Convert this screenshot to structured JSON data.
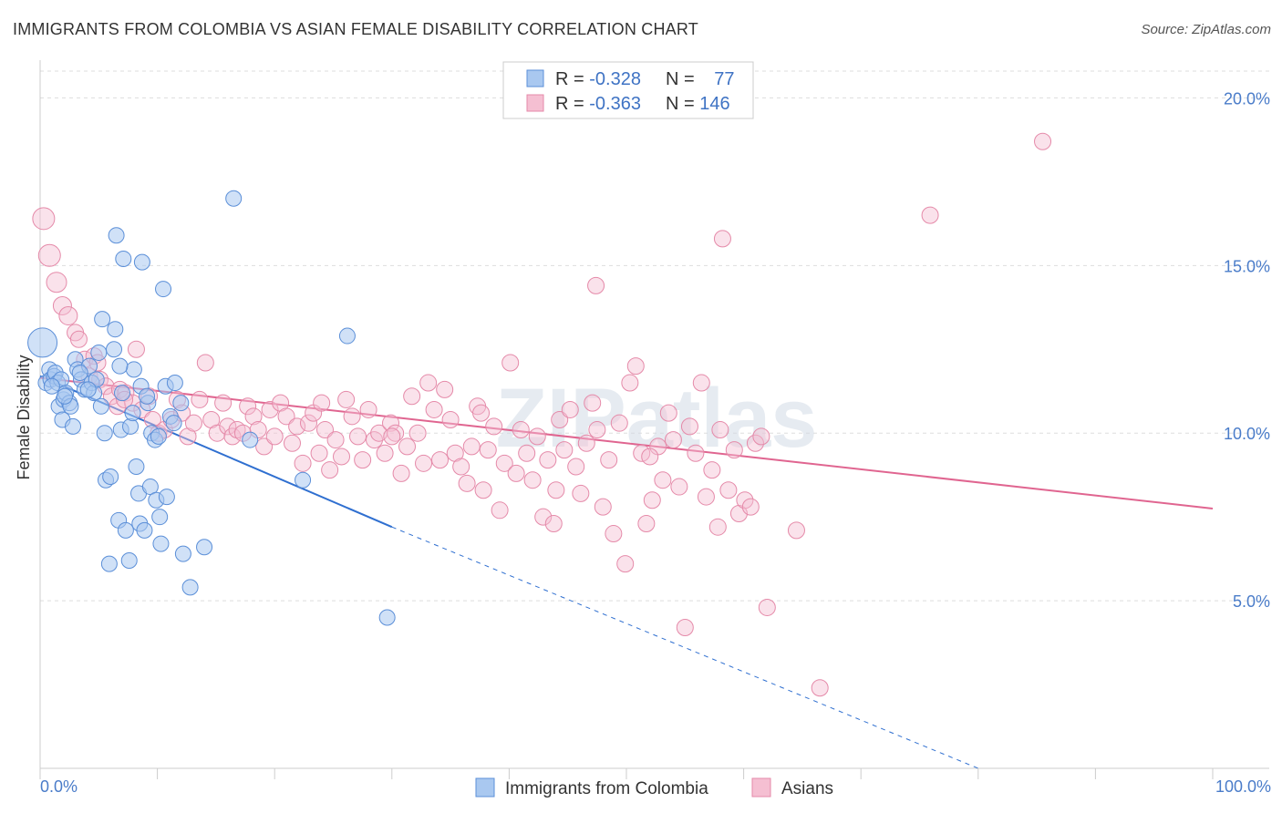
{
  "title": "IMMIGRANTS FROM COLOMBIA VS ASIAN FEMALE DISABILITY CORRELATION CHART",
  "source": "Source: ZipAtlas.com",
  "watermark": "ZIPatlas",
  "colors": {
    "blue_fill": "#a9c8f0",
    "blue_stroke": "#5b8fd8",
    "blue_line": "#2f6fd0",
    "pink_fill": "#f5bfd2",
    "pink_stroke": "#e58aa9",
    "pink_line": "#e06590",
    "tick_text": "#4a7cc9",
    "grid": "#dddddd"
  },
  "legend": {
    "rows": [
      {
        "r_label": "R = ",
        "r_value": "-0.328",
        "n_label": "N = ",
        "n_value": "77"
      },
      {
        "r_label": "R = ",
        "r_value": "-0.363",
        "n_label": "N = ",
        "n_value": "146"
      }
    ]
  },
  "chart_data": {
    "type": "scatter",
    "title": "IMMIGRANTS FROM COLOMBIA VS ASIAN FEMALE DISABILITY CORRELATION CHART",
    "xlabel": "",
    "ylabel": "Female Disability",
    "xlim": [
      0,
      100
    ],
    "ylim": [
      0,
      20.8
    ],
    "x_tick_labels": [
      "0.0%",
      "100.0%"
    ],
    "y_ticks": [
      5,
      10,
      15,
      20
    ],
    "y_tick_labels": [
      "5.0%",
      "10.0%",
      "15.0%",
      "20.0%"
    ],
    "grid": true,
    "legend_position": "top-center",
    "series": [
      {
        "name": "Immigrants from Colombia",
        "color": "#5b8fd8",
        "stats": {
          "R": -0.328,
          "N": 77
        },
        "trend": {
          "x0": 0,
          "y0": 11.7,
          "x1": 30,
          "y1": 7.2,
          "dashed_to_x": 80,
          "dashed_to_y": 0
        },
        "points": [
          [
            0.2,
            12.7
          ],
          [
            0.5,
            11.5
          ],
          [
            0.8,
            11.9
          ],
          [
            0.9,
            11.6
          ],
          [
            1.2,
            11.7
          ],
          [
            1.3,
            11.8
          ],
          [
            1.5,
            11.5
          ],
          [
            1.6,
            10.8
          ],
          [
            1.8,
            11.6
          ],
          [
            1.9,
            10.4
          ],
          [
            2.0,
            11.0
          ],
          [
            2.2,
            11.2
          ],
          [
            2.5,
            10.9
          ],
          [
            2.6,
            10.8
          ],
          [
            2.8,
            10.2
          ],
          [
            3.0,
            12.2
          ],
          [
            3.2,
            11.9
          ],
          [
            3.5,
            11.6
          ],
          [
            3.8,
            11.3
          ],
          [
            4.2,
            12.0
          ],
          [
            4.4,
            11.5
          ],
          [
            4.6,
            11.2
          ],
          [
            4.8,
            11.6
          ],
          [
            5.0,
            12.4
          ],
          [
            5.3,
            13.4
          ],
          [
            5.5,
            10.0
          ],
          [
            5.6,
            8.6
          ],
          [
            5.9,
            6.1
          ],
          [
            6.0,
            8.7
          ],
          [
            6.3,
            12.5
          ],
          [
            6.4,
            13.1
          ],
          [
            6.5,
            15.9
          ],
          [
            6.7,
            7.4
          ],
          [
            6.9,
            10.1
          ],
          [
            7.0,
            11.2
          ],
          [
            7.1,
            15.2
          ],
          [
            7.3,
            7.1
          ],
          [
            7.6,
            6.2
          ],
          [
            7.7,
            10.2
          ],
          [
            8.0,
            11.9
          ],
          [
            8.2,
            9.0
          ],
          [
            8.4,
            8.2
          ],
          [
            8.5,
            7.3
          ],
          [
            8.6,
            11.4
          ],
          [
            8.7,
            15.1
          ],
          [
            8.9,
            7.1
          ],
          [
            9.2,
            10.9
          ],
          [
            9.4,
            8.4
          ],
          [
            9.5,
            10.0
          ],
          [
            9.8,
            9.8
          ],
          [
            9.9,
            8.0
          ],
          [
            10.2,
            7.5
          ],
          [
            10.3,
            6.7
          ],
          [
            10.5,
            14.3
          ],
          [
            10.7,
            11.4
          ],
          [
            10.8,
            8.1
          ],
          [
            11.1,
            10.5
          ],
          [
            11.4,
            10.3
          ],
          [
            11.5,
            11.5
          ],
          [
            12.2,
            6.4
          ],
          [
            12.8,
            5.4
          ],
          [
            14.0,
            6.6
          ],
          [
            16.5,
            17.0
          ],
          [
            17.9,
            9.8
          ],
          [
            22.4,
            8.6
          ],
          [
            26.2,
            12.9
          ],
          [
            29.6,
            4.5
          ],
          [
            1.0,
            11.4
          ],
          [
            2.1,
            11.1
          ],
          [
            3.4,
            11.8
          ],
          [
            4.1,
            11.3
          ],
          [
            5.2,
            10.8
          ],
          [
            6.8,
            12.0
          ],
          [
            7.9,
            10.6
          ],
          [
            9.1,
            11.1
          ],
          [
            10.1,
            9.9
          ],
          [
            12.0,
            10.9
          ]
        ]
      },
      {
        "name": "Asians",
        "color": "#e58aa9",
        "stats": {
          "R": -0.363,
          "N": 146
        },
        "trend": {
          "x0": 0,
          "y0": 11.65,
          "x1": 100,
          "y1": 7.75
        },
        "points": [
          [
            0.3,
            16.4
          ],
          [
            0.8,
            15.3
          ],
          [
            1.4,
            14.5
          ],
          [
            1.9,
            13.8
          ],
          [
            2.4,
            13.5
          ],
          [
            3.0,
            13.0
          ],
          [
            3.3,
            12.8
          ],
          [
            3.8,
            12.2
          ],
          [
            4.2,
            11.7
          ],
          [
            4.6,
            12.3
          ],
          [
            4.9,
            12.1
          ],
          [
            5.1,
            11.6
          ],
          [
            5.6,
            11.4
          ],
          [
            6.1,
            11.1
          ],
          [
            6.6,
            10.8
          ],
          [
            6.8,
            11.3
          ],
          [
            7.3,
            11.2
          ],
          [
            7.9,
            10.9
          ],
          [
            8.2,
            12.5
          ],
          [
            8.7,
            10.7
          ],
          [
            9.3,
            11.1
          ],
          [
            9.6,
            10.4
          ],
          [
            10.1,
            10.0
          ],
          [
            10.6,
            10.1
          ],
          [
            11.2,
            10.4
          ],
          [
            11.7,
            11.0
          ],
          [
            12.1,
            10.6
          ],
          [
            12.6,
            9.9
          ],
          [
            13.1,
            10.3
          ],
          [
            13.6,
            11.0
          ],
          [
            14.1,
            12.1
          ],
          [
            14.6,
            10.4
          ],
          [
            15.1,
            10.0
          ],
          [
            15.6,
            10.9
          ],
          [
            16.0,
            10.2
          ],
          [
            16.4,
            9.9
          ],
          [
            16.8,
            10.1
          ],
          [
            17.3,
            10.0
          ],
          [
            17.7,
            10.8
          ],
          [
            18.2,
            10.5
          ],
          [
            18.6,
            10.1
          ],
          [
            19.1,
            9.6
          ],
          [
            19.6,
            10.7
          ],
          [
            20.0,
            9.9
          ],
          [
            20.5,
            10.9
          ],
          [
            21.0,
            10.5
          ],
          [
            21.5,
            9.7
          ],
          [
            21.9,
            10.2
          ],
          [
            22.4,
            9.1
          ],
          [
            22.9,
            10.3
          ],
          [
            23.3,
            10.6
          ],
          [
            23.8,
            9.4
          ],
          [
            24.3,
            10.1
          ],
          [
            24.7,
            8.9
          ],
          [
            25.2,
            9.8
          ],
          [
            25.7,
            9.3
          ],
          [
            26.1,
            11.0
          ],
          [
            26.6,
            10.5
          ],
          [
            27.1,
            9.9
          ],
          [
            27.5,
            9.2
          ],
          [
            28.0,
            10.7
          ],
          [
            28.5,
            9.8
          ],
          [
            28.9,
            10.0
          ],
          [
            29.4,
            9.4
          ],
          [
            29.9,
            10.3
          ],
          [
            30.3,
            10.0
          ],
          [
            30.8,
            8.8
          ],
          [
            31.3,
            9.6
          ],
          [
            31.7,
            11.1
          ],
          [
            32.2,
            10.0
          ],
          [
            32.7,
            9.1
          ],
          [
            33.1,
            11.5
          ],
          [
            33.6,
            10.7
          ],
          [
            34.1,
            9.2
          ],
          [
            34.5,
            11.3
          ],
          [
            35.0,
            10.4
          ],
          [
            35.4,
            9.4
          ],
          [
            35.9,
            9.0
          ],
          [
            36.4,
            8.5
          ],
          [
            36.8,
            9.6
          ],
          [
            37.3,
            10.8
          ],
          [
            37.8,
            8.3
          ],
          [
            38.2,
            9.5
          ],
          [
            38.7,
            10.2
          ],
          [
            39.2,
            7.7
          ],
          [
            39.6,
            9.1
          ],
          [
            40.1,
            12.1
          ],
          [
            40.6,
            8.8
          ],
          [
            41.0,
            10.1
          ],
          [
            41.5,
            9.4
          ],
          [
            42.0,
            8.6
          ],
          [
            42.4,
            9.9
          ],
          [
            42.9,
            7.5
          ],
          [
            43.3,
            9.2
          ],
          [
            43.8,
            7.3
          ],
          [
            44.3,
            10.4
          ],
          [
            44.7,
            9.5
          ],
          [
            45.2,
            10.7
          ],
          [
            45.7,
            9.0
          ],
          [
            46.1,
            8.2
          ],
          [
            46.6,
            9.7
          ],
          [
            47.1,
            10.9
          ],
          [
            47.5,
            10.1
          ],
          [
            48.0,
            7.8
          ],
          [
            48.5,
            9.2
          ],
          [
            48.9,
            7.0
          ],
          [
            49.4,
            10.3
          ],
          [
            49.9,
            6.1
          ],
          [
            50.3,
            11.5
          ],
          [
            50.8,
            12.0
          ],
          [
            51.3,
            9.4
          ],
          [
            51.7,
            7.3
          ],
          [
            52.2,
            8.0
          ],
          [
            52.7,
            9.6
          ],
          [
            53.1,
            8.6
          ],
          [
            53.6,
            10.6
          ],
          [
            54.0,
            9.8
          ],
          [
            54.5,
            8.4
          ],
          [
            55.0,
            4.2
          ],
          [
            55.4,
            10.2
          ],
          [
            55.9,
            9.4
          ],
          [
            56.4,
            11.5
          ],
          [
            56.8,
            8.1
          ],
          [
            57.3,
            8.9
          ],
          [
            57.8,
            7.2
          ],
          [
            58.2,
            15.8
          ],
          [
            58.7,
            8.3
          ],
          [
            59.2,
            9.5
          ],
          [
            59.6,
            7.6
          ],
          [
            60.1,
            8.0
          ],
          [
            60.6,
            7.8
          ],
          [
            61.0,
            9.7
          ],
          [
            61.5,
            9.9
          ],
          [
            62.0,
            4.8
          ],
          [
            64.5,
            7.1
          ],
          [
            66.5,
            2.4
          ],
          [
            75.9,
            16.5
          ],
          [
            85.5,
            18.7
          ],
          [
            47.4,
            14.4
          ],
          [
            7.2,
            11.0
          ],
          [
            24.0,
            10.9
          ],
          [
            37.6,
            10.6
          ],
          [
            44.0,
            8.3
          ],
          [
            52.0,
            9.3
          ],
          [
            58.0,
            10.1
          ],
          [
            30.0,
            9.9
          ]
        ]
      }
    ]
  }
}
